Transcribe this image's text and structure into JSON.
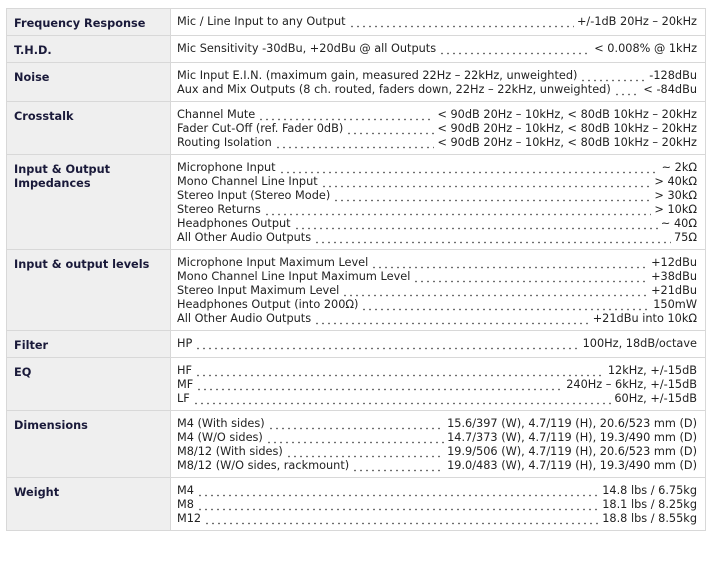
{
  "rows": [
    {
      "label": "Frequency Response",
      "lines": [
        {
          "name": "Mic / Line Input to any Output",
          "value": "+/-1dB 20Hz – 20kHz"
        }
      ]
    },
    {
      "label": "T.H.D.",
      "lines": [
        {
          "name": "Mic Sensitivity -30dBu, +20dBu @ all Outputs",
          "value": "< 0.008% @ 1kHz"
        }
      ]
    },
    {
      "label": "Noise",
      "lines": [
        {
          "name": "Mic Input E.I.N. (maximum gain, measured 22Hz – 22kHz, unweighted)",
          "value": "-128dBu"
        },
        {
          "name": "Aux and Mix Outputs (8 ch. routed, faders down, 22Hz – 22kHz, unweighted)",
          "value": "< -84dBu"
        }
      ]
    },
    {
      "label": "Crosstalk",
      "lines": [
        {
          "name": "Channel Mute",
          "value": "< 90dB 20Hz – 10kHz, < 80dB 10kHz – 20kHz"
        },
        {
          "name": "Fader Cut-Off (ref. Fader 0dB)",
          "value": "< 90dB 20Hz – 10kHz, < 80dB 10kHz – 20kHz"
        },
        {
          "name": "Routing Isolation",
          "value": "< 90dB 20Hz – 10kHz, < 80dB 10kHz – 20kHz"
        }
      ]
    },
    {
      "label": "Input & Output Impedances",
      "lines": [
        {
          "name": "Microphone Input",
          "value": "~ 2kΩ"
        },
        {
          "name": "Mono Channel Line Input",
          "value": "> 40kΩ"
        },
        {
          "name": "Stereo Input (Stereo Mode)",
          "value": "> 30kΩ"
        },
        {
          "name": "Stereo Returns",
          "value": "> 10kΩ"
        },
        {
          "name": "Headphones Output",
          "value": "~ 40Ω"
        },
        {
          "name": "All Other Audio Outputs",
          "value": "75Ω"
        }
      ]
    },
    {
      "label": "Input & output levels",
      "lines": [
        {
          "name": "Microphone Input Maximum Level",
          "value": "+12dBu"
        },
        {
          "name": "Mono Channel Line Input Maximum Level",
          "value": "+38dBu"
        },
        {
          "name": "Stereo Input Maximum Level",
          "value": "+21dBu"
        },
        {
          "name": "Headphones Output (into 200Ω)",
          "value": "150mW"
        },
        {
          "name": "All Other Audio Outputs",
          "value": "+21dBu into 10kΩ"
        }
      ]
    },
    {
      "label": "Filter",
      "lines": [
        {
          "name": "HP",
          "value": "100Hz, 18dB/octave"
        }
      ]
    },
    {
      "label": "EQ",
      "lines": [
        {
          "name": "HF",
          "value": "12kHz, +/-15dB"
        },
        {
          "name": "MF",
          "value": "240Hz – 6kHz, +/-15dB"
        },
        {
          "name": "LF",
          "value": "60Hz, +/-15dB"
        }
      ]
    },
    {
      "label": "Dimensions",
      "lines": [
        {
          "name": "M4 (With sides)",
          "value": "15.6/397 (W), 4.7/119 (H), 20.6/523 mm (D)"
        },
        {
          "name": "M4 (W/O sides)",
          "value": "14.7/373 (W), 4.7/119 (H), 19.3/490 mm (D)"
        },
        {
          "name": "M8/12 (With sides)",
          "value": "19.9/506 (W), 4.7/119 (H), 20.6/523 mm (D)"
        },
        {
          "name": "M8/12 (W/O sides, rackmount)",
          "value": "19.0/483 (W), 4.7/119 (H), 19.3/490 mm (D)"
        }
      ]
    },
    {
      "label": "Weight",
      "lines": [
        {
          "name": "M4",
          "value": "14.8 lbs / 6.75kg"
        },
        {
          "name": "M8",
          "value": "18.1 lbs / 8.25kg"
        },
        {
          "name": "M12",
          "value": "18.8 lbs / 8.55kg"
        }
      ]
    }
  ]
}
